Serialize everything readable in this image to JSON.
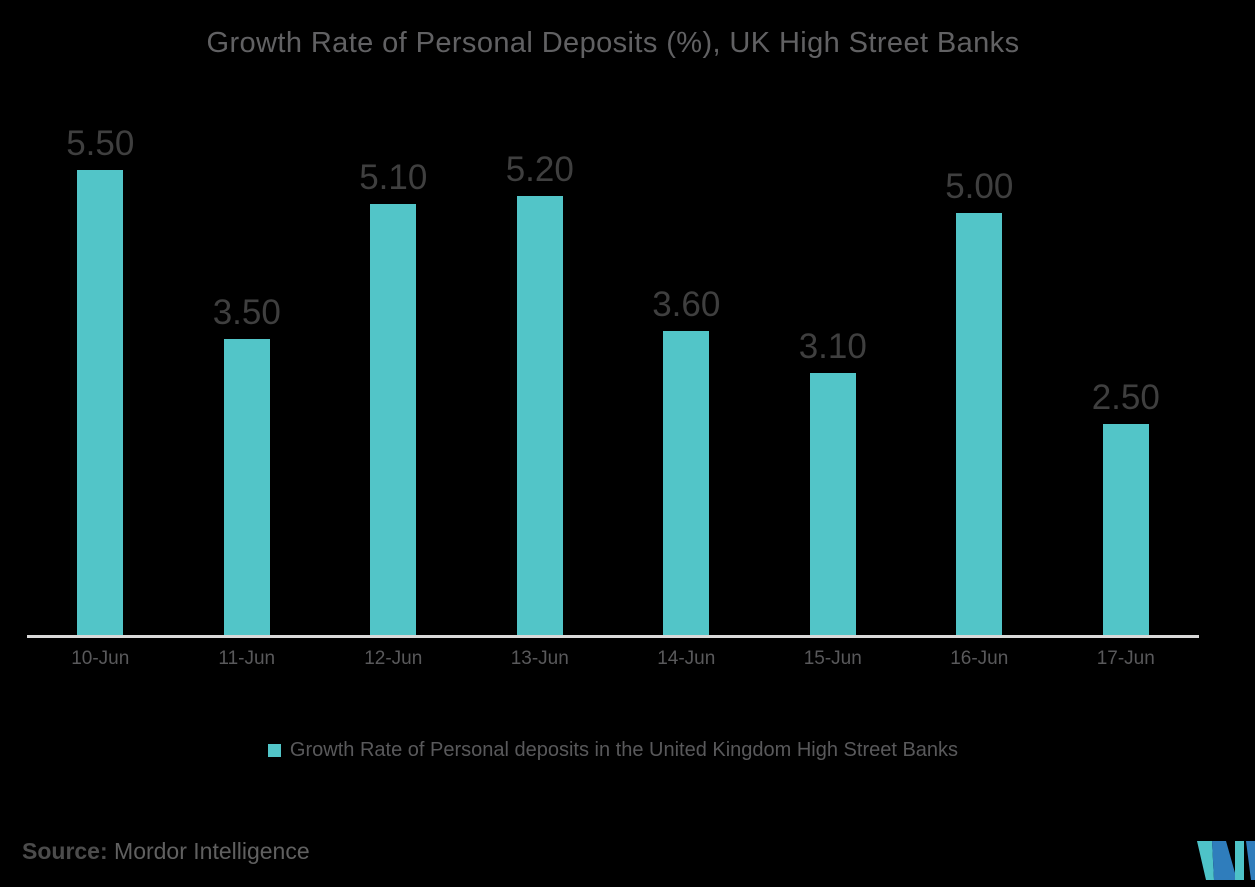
{
  "title": "Growth Rate of Personal Deposits (%), UK High Street Banks",
  "chart_data": {
    "type": "bar",
    "title": "Growth Rate of Personal Deposits (%), UK High Street Banks",
    "categories": [
      "10-Jun",
      "11-Jun",
      "12-Jun",
      "13-Jun",
      "14-Jun",
      "15-Jun",
      "16-Jun",
      "17-Jun"
    ],
    "values": [
      5.5,
      3.5,
      5.1,
      5.2,
      3.6,
      3.1,
      5.0,
      2.5
    ],
    "value_labels": [
      "5.50",
      "3.50",
      "5.10",
      "5.20",
      "3.60",
      "3.10",
      "5.00",
      "2.50"
    ],
    "xlabel": "",
    "ylabel": "",
    "ylim": [
      0,
      6.76
    ],
    "grid": false,
    "legend_position": "bottom",
    "bar_color": "#52C5C8",
    "data_label_color": "#3F3F3F",
    "axis_line_color": "#D9D9D9"
  },
  "legend": {
    "label": "Growth Rate of Personal deposits in the United Kingdom High Street Banks",
    "marker_color": "#52C5C8"
  },
  "source": {
    "prefix": "Source:",
    "text": " Mordor Intelligence"
  },
  "logo": {
    "name": "mordor-intelligence-logo",
    "teal": "#4EC3C8",
    "blue": "#2F7DBC"
  },
  "colors": {
    "background": "#000000",
    "title_text": "#616163",
    "tick_text": "#59595B",
    "legend_text": "#59595B"
  }
}
